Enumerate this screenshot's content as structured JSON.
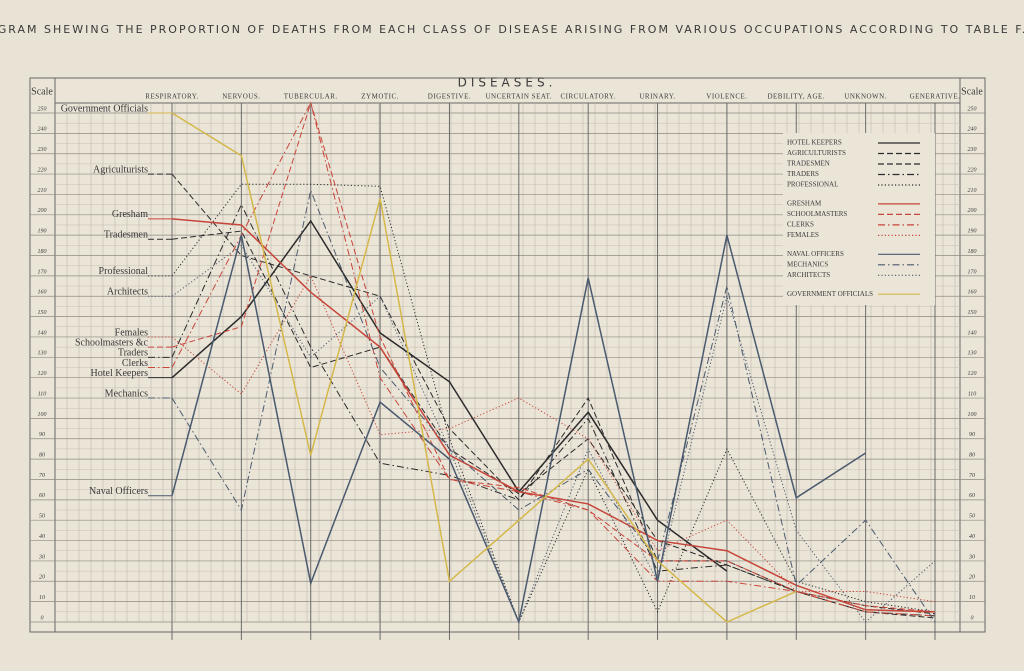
{
  "chart_data": {
    "type": "line",
    "title": "DIAGRAM SHEWING THE PROPORTION OF DEATHS FROM EACH CLASS OF DISEASE ARISING FROM VARIOUS OCCUPATIONS ACCORDING TO TABLE F.",
    "subtitle": "DISEASES.",
    "y_label": "Scale",
    "y2_label": "Scale",
    "categories": [
      "RESPIRATORY.",
      "NERVOUS.",
      "TUBERCULAR.",
      "ZYMOTIC.",
      "DIGESTIVE.",
      "UNCERTAIN SEAT.",
      "CIRCULATORY.",
      "URINARY.",
      "VIOLENCE.",
      "DEBILITY, AGE.",
      "UNKNOWN.",
      "GENERATIVE."
    ],
    "ylim": [
      0,
      250
    ],
    "yticks": [
      0,
      10,
      20,
      30,
      40,
      50,
      60,
      70,
      80,
      90,
      100,
      110,
      120,
      130,
      140,
      150,
      160,
      170,
      180,
      190,
      200,
      210,
      220,
      230,
      240,
      250
    ],
    "grid": true,
    "legend": "upper right",
    "series": [
      {
        "name": "HOTEL KEEPERS",
        "label": "Hotel Keepers",
        "color": "#2b2b2b",
        "dash": "solid",
        "values": [
          120,
          150,
          197,
          142,
          118,
          64,
          103,
          50,
          25,
          null,
          null,
          null
        ]
      },
      {
        "name": "AGRICULTURISTS",
        "label": "Agriculturists",
        "color": "#2b2b2b",
        "dash": "dashed",
        "values": [
          220,
          180,
          170,
          160,
          95,
          60,
          110,
          30,
          30,
          15,
          5,
          2
        ]
      },
      {
        "name": "TRADESMEN",
        "label": "Tradesmen",
        "color": "#2b2b2b",
        "dash": "dashed",
        "values": [
          188,
          192,
          125,
          135,
          85,
          63,
          90,
          40,
          28,
          15,
          8,
          4
        ]
      },
      {
        "name": "TRADERS",
        "label": "Traders",
        "color": "#2b2b2b",
        "dash": "dashdot",
        "values": [
          130,
          205,
          135,
          78,
          72,
          60,
          100,
          25,
          28,
          15,
          5,
          3
        ]
      },
      {
        "name": "PROFESSIONAL",
        "label": "Professional",
        "color": "#2b2b2b",
        "dash": "dotted",
        "values": [
          170,
          215,
          215,
          214,
          90,
          0,
          75,
          5,
          85,
          20,
          10,
          5
        ]
      },
      {
        "name": "GRESHAM",
        "label": "Gresham",
        "color": "#c8453a",
        "dash": "solid",
        "values": [
          198,
          195,
          162,
          135,
          82,
          64,
          58,
          40,
          35,
          18,
          6,
          5
        ]
      },
      {
        "name": "SCHOOLMASTERS",
        "label": "Schoolmasters &c",
        "color": "#c8453a",
        "dash": "dashed",
        "values": [
          135,
          145,
          255,
          140,
          70,
          66,
          55,
          30,
          30,
          15,
          8,
          5
        ]
      },
      {
        "name": "CLERKS",
        "label": "Clerks",
        "color": "#c8453a",
        "dash": "dashdot",
        "values": [
          125,
          190,
          255,
          120,
          70,
          64,
          55,
          20,
          20,
          15,
          5,
          3
        ]
      },
      {
        "name": "FEMALES",
        "label": "Females",
        "color": "#c8453a",
        "dash": "dotted",
        "values": [
          140,
          112,
          170,
          92,
          95,
          110,
          90,
          35,
          50,
          15,
          15,
          10
        ]
      },
      {
        "name": "NAVAL OFFICERS",
        "label": "Naval Officers",
        "color": "#4a5a6e",
        "dash": "solid",
        "values": [
          62,
          190,
          19,
          108,
          80,
          0,
          169,
          20,
          190,
          61,
          83,
          null
        ]
      },
      {
        "name": "MECHANICS",
        "label": "Mechanics",
        "color": "#4a5a6e",
        "dash": "dashdot",
        "values": [
          110,
          55,
          212,
          125,
          85,
          55,
          75,
          30,
          165,
          18,
          50,
          0
        ]
      },
      {
        "name": "ARCHITECTS",
        "label": "Architects",
        "color": "#4a5a6e",
        "dash": "dotted",
        "values": [
          160,
          185,
          130,
          160,
          85,
          0,
          85,
          20,
          160,
          45,
          0,
          30
        ]
      },
      {
        "name": "GOVERNMENT OFFICIALS",
        "label": "Government Officials",
        "color": "#d4b84a",
        "dash": "solid",
        "values": [
          250,
          229,
          82,
          208,
          20,
          50,
          80,
          30,
          0,
          15,
          null,
          null
        ]
      }
    ]
  }
}
